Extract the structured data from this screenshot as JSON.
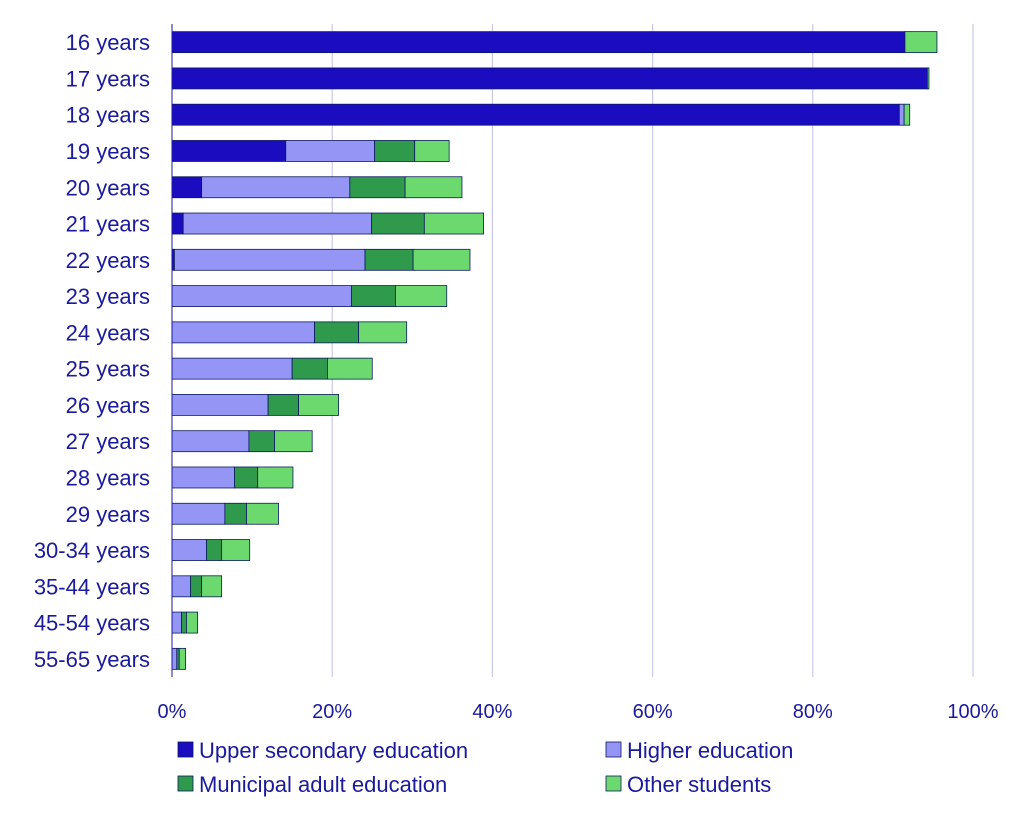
{
  "chart_data": {
    "type": "bar",
    "orientation": "horizontal",
    "stacked": true,
    "categories": [
      "16 years",
      "17 years",
      "18 years",
      "19 years",
      "20 years",
      "21 years",
      "22 years",
      "23 years",
      "24 years",
      "25 years",
      "26 years",
      "27 years",
      "28 years",
      "29 years",
      "30-34 years",
      "35-44 years",
      "45-54 years",
      "55-65 years"
    ],
    "series": [
      {
        "name": "Upper secondary education",
        "color": "#1c0cbf",
        "values": [
          91.5,
          94.3,
          90.8,
          14.2,
          3.7,
          1.4,
          0.3,
          0,
          0,
          0,
          0,
          0,
          0,
          0,
          0,
          0,
          0,
          0
        ]
      },
      {
        "name": "Higher education",
        "color": "#9495f5",
        "values": [
          0,
          0,
          0.6,
          11.1,
          18.5,
          23.5,
          23.8,
          22.4,
          17.8,
          15.0,
          12.0,
          9.6,
          7.8,
          6.6,
          4.3,
          2.3,
          1.2,
          0.6
        ]
      },
      {
        "name": "Municipal adult education",
        "color": "#2f9a4c",
        "values": [
          0,
          0,
          0,
          5.0,
          6.9,
          6.6,
          6.0,
          5.5,
          5.5,
          4.4,
          3.8,
          3.2,
          2.9,
          2.7,
          1.9,
          1.4,
          0.6,
          0.3
        ]
      },
      {
        "name": "Other students",
        "color": "#6bd96e",
        "values": [
          4.0,
          0.2,
          0.7,
          4.3,
          7.1,
          7.4,
          7.1,
          6.4,
          6.0,
          5.6,
          5.0,
          4.7,
          4.4,
          4.0,
          3.5,
          2.5,
          1.4,
          0.8
        ]
      }
    ],
    "xlim": [
      0,
      100
    ],
    "xticks": [
      "0%",
      "20%",
      "40%",
      "60%",
      "80%",
      "100%"
    ],
    "xtick_values": [
      0,
      20,
      40,
      60,
      80,
      100
    ],
    "grid": "vertical",
    "legend": "bottom",
    "title": "",
    "xlabel": "",
    "ylabel": ""
  }
}
